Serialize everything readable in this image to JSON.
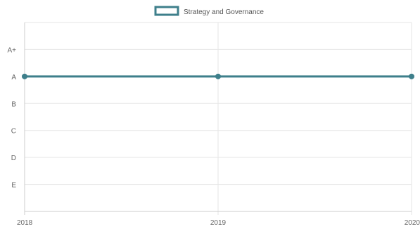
{
  "chart_data": {
    "type": "line",
    "x": [
      "2018",
      "2019",
      "2020"
    ],
    "y_categories": [
      "E",
      "D",
      "C",
      "B",
      "A",
      "A+"
    ],
    "series": [
      {
        "name": "Strategy and Governance",
        "values": [
          "A",
          "A",
          "A"
        ],
        "color": "#3e7f8b"
      }
    ],
    "legend": "top-center",
    "grid": true
  }
}
